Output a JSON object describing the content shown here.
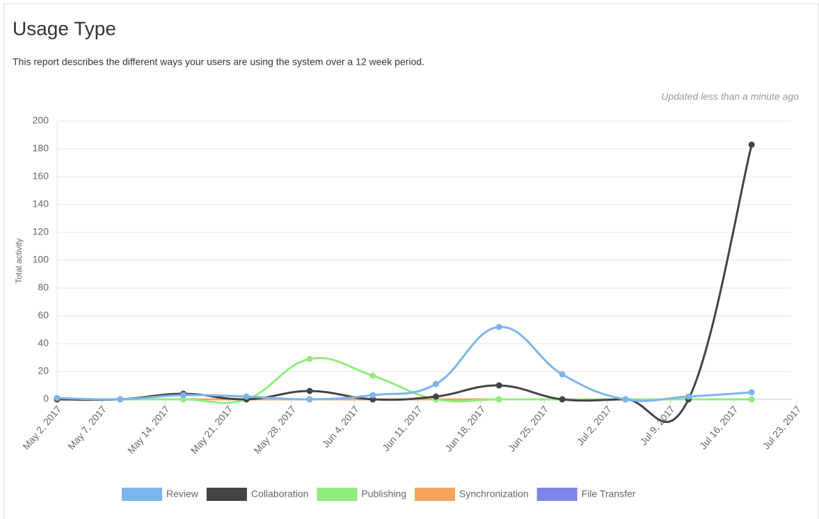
{
  "chart_data": {
    "type": "line",
    "title": "Usage Type",
    "subtitle": "This report describes the different ways your users are using the system over a 12 week period.",
    "updated": "Updated less than a minute ago",
    "y_label": "Total activity",
    "x": [
      "2017-05-02",
      "2017-05-09",
      "2017-05-16",
      "2017-05-23",
      "2017-05-30",
      "2017-06-06",
      "2017-06-13",
      "2017-06-20",
      "2017-06-27",
      "2017-07-04",
      "2017-07-11",
      "2017-07-18"
    ],
    "xlim": [
      "2017-05-02",
      "2017-07-23"
    ],
    "xticks": [
      {
        "value": "2017-05-02",
        "label": "May 2, 2017"
      },
      {
        "value": "2017-05-07",
        "label": "May 7, 2017"
      },
      {
        "value": "2017-05-14",
        "label": "May 14, 2017"
      },
      {
        "value": "2017-05-21",
        "label": "May 21, 2017"
      },
      {
        "value": "2017-05-28",
        "label": "May 28, 2017"
      },
      {
        "value": "2017-06-04",
        "label": "Jun 4, 2017"
      },
      {
        "value": "2017-06-11",
        "label": "Jun 11, 2017"
      },
      {
        "value": "2017-06-18",
        "label": "Jun 18, 2017"
      },
      {
        "value": "2017-06-25",
        "label": "Jun 25, 2017"
      },
      {
        "value": "2017-07-02",
        "label": "Jul 2, 2017"
      },
      {
        "value": "2017-07-09",
        "label": "Jul 9, 2017"
      },
      {
        "value": "2017-07-16",
        "label": "Jul 16, 2017"
      },
      {
        "value": "2017-07-23",
        "label": "Jul 23, 2017"
      }
    ],
    "ylim": [
      0,
      200
    ],
    "yticks": [
      0,
      20,
      40,
      60,
      80,
      100,
      120,
      140,
      160,
      180,
      200
    ],
    "grid": true,
    "series": [
      {
        "name": "Review",
        "color": "#7cb5ec",
        "values": [
          1,
          0,
          3,
          2,
          0,
          3,
          11,
          52,
          18,
          0,
          2,
          5
        ]
      },
      {
        "name": "Collaboration",
        "color": "#434348",
        "values": [
          0,
          0,
          4,
          0,
          6,
          0,
          2,
          10,
          0,
          0,
          0,
          183
        ]
      },
      {
        "name": "Publishing",
        "color": "#90ed7d",
        "values": [
          0,
          0,
          0,
          0,
          29,
          17,
          0,
          0,
          0,
          0,
          0,
          0
        ]
      },
      {
        "name": "Synchronization",
        "color": "#f7a35c",
        "values": [
          0,
          0,
          0,
          0,
          0,
          0,
          0,
          0,
          0,
          0,
          0,
          0
        ]
      },
      {
        "name": "File Transfer",
        "color": "#8085e9",
        "values": [
          0,
          0,
          0,
          0,
          0,
          0,
          0,
          0,
          0,
          0,
          0,
          0
        ]
      }
    ]
  }
}
